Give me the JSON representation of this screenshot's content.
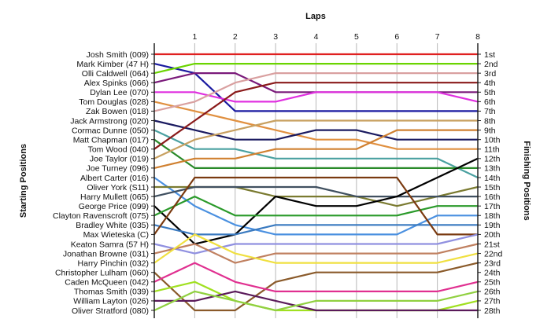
{
  "chart_data": {
    "type": "line",
    "title": "",
    "xlabel": "Laps",
    "ylabel_left": "Starting Positions",
    "ylabel_right": "Finishing Positions",
    "x": [
      0,
      1,
      2,
      3,
      4,
      5,
      6,
      7,
      8
    ],
    "lap_ticks": [
      "1",
      "2",
      "3",
      "4",
      "5",
      "6",
      "7",
      "8"
    ],
    "ylim": [
      1,
      28
    ],
    "y_inverted": true,
    "grid": {
      "vertical": true,
      "horizontal": false
    },
    "starting_labels": [
      "Josh Smith (009)",
      "Mark Kimber (47 H)",
      "Olli Caldwell (064)",
      "Alex Spinks (066)",
      "Dylan Lee (070)",
      "Tom Douglas (028)",
      "Zak Bowen (018)",
      "Jack Armstrong (020)",
      "Cormac Dunne (050)",
      "Matt Chapman (017)",
      "Tom Wood (040)",
      "Joe Taylor (019)",
      "Joe Turney (096)",
      "Albert Carter (016)",
      "Oliver York (S11)",
      "Harry Mullett (065)",
      "George Price (099)",
      "Clayton Ravenscroft (075)",
      "Bradley White (035)",
      "Max Wieteska (C)",
      "Keaton Samra (57 H)",
      "Jonathan Browne (031)",
      "Harry Pinchin (032)",
      "Christopher Lulham (060)",
      "Caden McQueen (042)",
      "Thomas Smith (039)",
      "William Layton (026)",
      "Oliver Stratford (080)"
    ],
    "finishing_labels": [
      "1st",
      "2nd",
      "3rd",
      "4th",
      "5th",
      "6th",
      "7th",
      "8th",
      "9th",
      "10th",
      "11th",
      "12th",
      "13th",
      "14th",
      "15th",
      "16th",
      "17th",
      "18th",
      "19th",
      "20th",
      "21st",
      "22nd",
      "23rd",
      "24th",
      "25th",
      "26th",
      "27th",
      "28th"
    ],
    "series": [
      {
        "color": "#e02020",
        "values": [
          1,
          1,
          1,
          1,
          1,
          1,
          1,
          1,
          1
        ]
      },
      {
        "color": "#1a1aa0",
        "values": [
          2,
          3,
          7,
          7,
          7,
          7,
          7,
          7,
          7
        ]
      },
      {
        "color": "#6ad400",
        "values": [
          3,
          2,
          2,
          2,
          2,
          2,
          2,
          2,
          2
        ]
      },
      {
        "color": "#7a1a7a",
        "values": [
          4,
          3,
          3,
          5,
          5,
          5,
          5,
          5,
          5
        ]
      },
      {
        "color": "#e030e0",
        "values": [
          5,
          5,
          6,
          6,
          5,
          5,
          5,
          5,
          6
        ]
      },
      {
        "color": "#e09040",
        "values": [
          6,
          7,
          8,
          9,
          10,
          10,
          11,
          11,
          11
        ]
      },
      {
        "color": "#d9a0a0",
        "values": [
          7,
          6,
          4,
          3,
          3,
          3,
          3,
          3,
          3
        ]
      },
      {
        "color": "#1a1a60",
        "values": [
          8,
          9,
          10,
          10,
          9,
          9,
          10,
          10,
          10
        ]
      },
      {
        "color": "#4aa0a0",
        "values": [
          9,
          11,
          11,
          12,
          12,
          12,
          12,
          12,
          14
        ]
      },
      {
        "color": "#2a8a2a",
        "values": [
          10,
          13,
          13,
          13,
          13,
          13,
          13,
          13,
          13
        ]
      },
      {
        "color": "#8a1a1a",
        "values": [
          11,
          8,
          5,
          4,
          4,
          4,
          4,
          4,
          4
        ]
      },
      {
        "color": "#c8a060",
        "values": [
          12,
          10,
          9,
          8,
          8,
          8,
          8,
          8,
          8
        ]
      },
      {
        "color": "#d08030",
        "values": [
          13,
          12,
          12,
          11,
          11,
          11,
          9,
          9,
          9
        ]
      },
      {
        "color": "#4a90e0",
        "values": [
          14,
          17,
          19,
          20,
          20,
          20,
          20,
          18,
          18
        ]
      },
      {
        "color": "#7a7a30",
        "values": [
          15,
          15,
          15,
          16,
          16,
          16,
          17,
          16,
          15
        ]
      },
      {
        "color": "#405060",
        "values": [
          16,
          15,
          15,
          15,
          15,
          16,
          16,
          16,
          16
        ]
      },
      {
        "color": "#000000",
        "values": [
          17,
          21,
          20,
          16,
          17,
          17,
          16,
          14,
          12
        ]
      },
      {
        "color": "#2a9a2a",
        "values": [
          18,
          16,
          18,
          18,
          18,
          18,
          18,
          17,
          17
        ]
      },
      {
        "color": "#3a7ac0",
        "values": [
          19,
          20,
          20,
          19,
          19,
          19,
          19,
          19,
          19
        ]
      },
      {
        "color": "#7a3a10",
        "values": [
          20,
          14,
          14,
          14,
          14,
          14,
          14,
          20,
          20
        ]
      },
      {
        "color": "#9090e0",
        "values": [
          21,
          22,
          21,
          21,
          21,
          21,
          21,
          21,
          20
        ]
      },
      {
        "color": "#c08060",
        "values": [
          22,
          21,
          23,
          22,
          22,
          22,
          22,
          22,
          21
        ]
      },
      {
        "color": "#f0e040",
        "values": [
          23,
          20,
          22,
          23,
          23,
          23,
          23,
          23,
          22
        ]
      },
      {
        "color": "#8a5a2a",
        "values": [
          24,
          28,
          28,
          25,
          24,
          24,
          24,
          24,
          23
        ]
      },
      {
        "color": "#e03090",
        "values": [
          25,
          23,
          25,
          26,
          26,
          26,
          26,
          26,
          25
        ]
      },
      {
        "color": "#a0e020",
        "values": [
          26,
          25,
          27,
          28,
          28,
          28,
          28,
          28,
          27
        ]
      },
      {
        "color": "#5a1a5a",
        "values": [
          27,
          27,
          26,
          27,
          28,
          28,
          28,
          28,
          28
        ]
      },
      {
        "color": "#90d040",
        "values": [
          28,
          26,
          27,
          28,
          27,
          27,
          27,
          27,
          26
        ]
      }
    ]
  }
}
